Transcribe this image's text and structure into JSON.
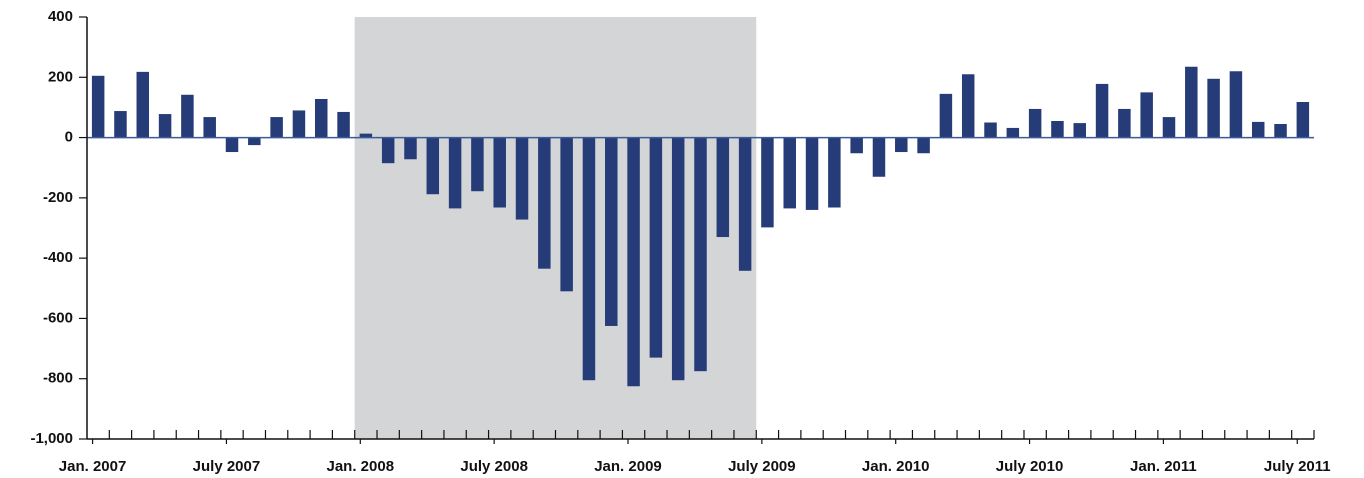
{
  "chart_data": {
    "type": "bar",
    "categories": [
      "Jan. 2007",
      null,
      null,
      null,
      null,
      null,
      "July 2007",
      null,
      null,
      null,
      null,
      null,
      "Jan. 2008",
      null,
      null,
      null,
      null,
      null,
      "July 2008",
      null,
      null,
      null,
      null,
      null,
      "Jan. 2009",
      null,
      null,
      null,
      null,
      null,
      "July 2009",
      null,
      null,
      null,
      null,
      null,
      "Jan. 2010",
      null,
      null,
      null,
      null,
      null,
      "July 2010",
      null,
      null,
      null,
      null,
      null,
      "Jan. 2011",
      null,
      null,
      null,
      null,
      null,
      "July 2011"
    ],
    "values": [
      205,
      88,
      218,
      78,
      142,
      68,
      -48,
      -25,
      68,
      90,
      128,
      85,
      13,
      -85,
      -72,
      -188,
      -235,
      -178,
      -232,
      -272,
      -435,
      -510,
      -805,
      -625,
      -825,
      -730,
      -805,
      -775,
      -330,
      -442,
      -298,
      -235,
      -240,
      -232,
      -52,
      -130,
      -48,
      -52,
      145,
      210,
      50,
      32,
      95,
      55,
      48,
      178,
      95,
      150,
      68,
      235,
      195,
      220,
      52,
      45,
      118
    ],
    "color": "#263c78",
    "ylim": [
      -1000,
      400
    ],
    "yticks": [
      400,
      200,
      0,
      -200,
      -400,
      -600,
      -800,
      {
        "value": -1000,
        "label": "-1,000"
      }
    ],
    "grid": false,
    "shade_from": "Jan. 2008",
    "shade_to": "July 2009",
    "shade_color": "#d4d5d7",
    "zero_line_color": "#3a5a9a"
  }
}
